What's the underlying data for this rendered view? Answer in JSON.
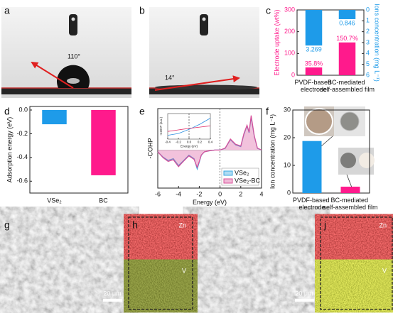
{
  "panel_labels": [
    "a",
    "b",
    "c",
    "d",
    "e",
    "f",
    "g",
    "h",
    "j"
  ],
  "photos": {
    "a_angle": "110°",
    "b_angle": "14°"
  },
  "sem": {
    "zn": "Zn",
    "v": "V",
    "scale": "20 μm"
  },
  "chart_data": [
    {
      "type": "bar",
      "categories": [
        "PVDF-based electrode",
        "BC-mediated self-assembled film"
      ],
      "ylabel": "Electrode uptake (wt%)",
      "y2label": "Ions concentration (mg L⁻¹)",
      "ylim": [
        0,
        300
      ],
      "yticks": [
        0,
        100,
        200,
        300
      ],
      "y2lim": [
        0,
        6
      ],
      "y2ticks": [
        0,
        1,
        2,
        3,
        4,
        5,
        6
      ],
      "y2_inverted": true,
      "series": [
        {
          "color": "#ff1a8c",
          "values": [
            35.8,
            150.7
          ],
          "value_labels": [
            "35.8%",
            "150.7%"
          ]
        },
        {
          "color": "#1e9be9",
          "values": [
            3.269,
            0.846
          ],
          "axis": "y2"
        }
      ]
    },
    {
      "type": "bar",
      "categories": [
        "VSe₂",
        "BC"
      ],
      "ylabel": "Adsorption energy (eV)",
      "values": [
        -0.12,
        -0.55
      ],
      "colors": [
        "#1e9be9",
        "#ff1a8c"
      ],
      "ylim": [
        -0.7,
        0.03
      ],
      "yticks": [
        {
          "value": 0,
          "label": "0.0"
        },
        -0.2,
        -0.4,
        -0.6
      ]
    },
    {
      "type": "line",
      "xlabel": "Energy (eV)",
      "ylabel": "-COHP",
      "xlim": [
        -6,
        4
      ],
      "xticks": [
        -6,
        -4,
        -2,
        0,
        2,
        4
      ],
      "ylim": [
        -1.1,
        1.2
      ],
      "legend": "lower right",
      "x": [
        -6,
        -5.5,
        -5,
        -4.5,
        -4,
        -3.5,
        -3,
        -2.5,
        -2.2,
        -2,
        -1.8,
        -1.5,
        -1,
        -0.5,
        0,
        0.5,
        1,
        1.5,
        2,
        2.3,
        2.6,
        2.8,
        3,
        3.3,
        3.6,
        4
      ],
      "series": [
        {
          "name": "VSe₂",
          "color": "#39a7e0",
          "values": [
            -0.05,
            -0.2,
            -0.3,
            -0.25,
            -0.45,
            -0.3,
            -0.15,
            -0.25,
            -0.55,
            -0.35,
            -0.15,
            -0.05,
            -0.02,
            0,
            0,
            0.05,
            0.3,
            0.15,
            0.1,
            0.45,
            0.7,
            0.5,
            0.95,
            0.4,
            0.05,
            0
          ]
        },
        {
          "name": "VSe₂-BC",
          "color": "#d9509a",
          "area": true,
          "values": [
            -0.05,
            -0.22,
            -0.33,
            -0.28,
            -0.48,
            -0.32,
            -0.17,
            -0.27,
            -0.5,
            -0.33,
            -0.14,
            -0.05,
            -0.02,
            0,
            0,
            0.06,
            0.32,
            0.17,
            0.12,
            0.48,
            0.72,
            0.52,
            1.0,
            0.42,
            0.06,
            0
          ]
        }
      ]
    },
    {
      "type": "line",
      "xlabel": "Energy (eV)",
      "ylabel": "-COHP (a.u.)",
      "xlim": [
        -0.4,
        0.4
      ],
      "xticks": [
        -0.4,
        -0.2,
        {
          "value": 0,
          "label": "0.0"
        },
        0.2,
        0.4
      ],
      "ylim": [
        0,
        1
      ],
      "x": [
        -0.4,
        -0.2,
        0,
        0.2,
        0.4
      ],
      "series": [
        {
          "color": "#2d8fe0",
          "values": [
            0.15,
            0.22,
            0.38,
            0.58,
            0.82
          ]
        },
        {
          "color": "#e0306a",
          "values": [
            0.3,
            0.36,
            0.42,
            0.47,
            0.52
          ]
        }
      ]
    },
    {
      "type": "bar",
      "categories": [
        "PVDF-based electrode",
        "BC-mediated self-assembled film"
      ],
      "ylabel": "Ion concentration (mg L⁻¹)",
      "values": [
        18.8,
        2.3
      ],
      "colors": [
        "#1e9be9",
        "#ff1a8c"
      ],
      "ylim": [
        0,
        30
      ],
      "yticks": [
        0,
        10,
        20,
        30
      ]
    }
  ]
}
